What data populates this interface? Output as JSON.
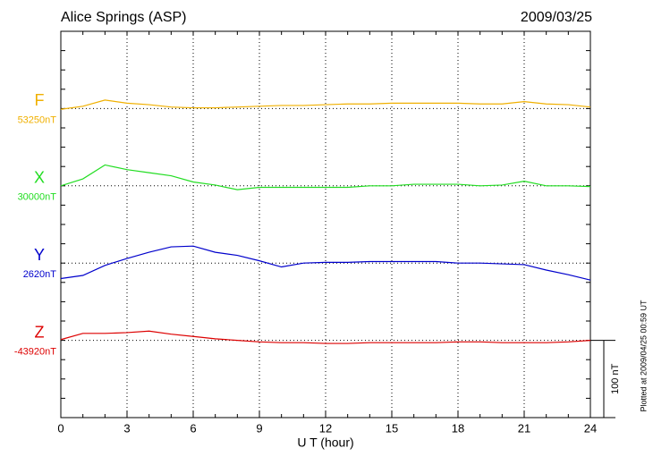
{
  "chart_data": {
    "type": "line",
    "title": "Alice Springs (ASP)",
    "date": "2009/03/25",
    "x_label": "U T (hour)",
    "footnote": "Plotted at 2009/04/25 00:59 UT",
    "scale_bar": {
      "value": 100,
      "label": "100 nT"
    },
    "xlim": [
      0,
      24
    ],
    "xticks": [
      0,
      3,
      6,
      9,
      12,
      15,
      18,
      21,
      24
    ],
    "grid": true,
    "x": [
      0,
      1,
      2,
      3,
      4,
      5,
      6,
      7,
      8,
      9,
      10,
      11,
      12,
      13,
      14,
      15,
      16,
      17,
      18,
      19,
      20,
      21,
      22,
      23,
      24
    ],
    "series": [
      {
        "name": "F",
        "color": "#f0b000",
        "base": {
          "value": 53250,
          "label": "53250nT"
        },
        "values": [
          53249,
          53253,
          53261,
          53257,
          53255,
          53252,
          53251,
          53251,
          53252,
          53253,
          53254,
          53254,
          53255,
          53256,
          53256,
          53257,
          53257,
          53257,
          53257,
          53256,
          53256,
          53259,
          53256,
          53255,
          53252
        ]
      },
      {
        "name": "X",
        "color": "#22dd22",
        "base": {
          "value": 30000,
          "label": "30000nT"
        },
        "values": [
          30000,
          30009,
          30027,
          30021,
          30017,
          30013,
          30005,
          30001,
          29995,
          29998,
          29998,
          29998,
          29998,
          29998,
          30000,
          30000,
          30002,
          30002,
          30002,
          30000,
          30001,
          30006,
          30000,
          30000,
          29999
        ]
      },
      {
        "name": "Y",
        "color": "#0000cc",
        "base": {
          "value": 2620,
          "label": "2620nT"
        },
        "values": [
          2600,
          2604,
          2617,
          2626,
          2634,
          2641,
          2642,
          2634,
          2630,
          2623,
          2615,
          2620,
          2621,
          2621,
          2622,
          2622,
          2622,
          2622,
          2620,
          2620,
          2619,
          2618,
          2611,
          2605,
          2598
        ]
      },
      {
        "name": "Z",
        "color": "#dd0000",
        "base": {
          "value": -43920,
          "label": "-43920nT"
        },
        "values": [
          -43919,
          -43911,
          -43911,
          -43910,
          -43908,
          -43912,
          -43915,
          -43918,
          -43920,
          -43922,
          -43923,
          -43923,
          -43924,
          -43924,
          -43923,
          -43923,
          -43923,
          -43923,
          -43922,
          -43922,
          -43923,
          -43923,
          -43923,
          -43922,
          -43920
        ]
      }
    ]
  }
}
